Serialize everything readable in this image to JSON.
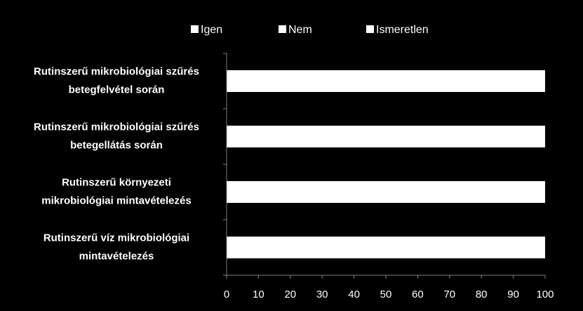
{
  "chart_data": {
    "type": "bar",
    "orientation": "horizontal",
    "stacked": true,
    "categories": [
      [
        "Rutinszerű mikrobiológiai szűrés",
        "betegfelvétel során"
      ],
      [
        "Rutinszerű mikrobiológiai szűrés",
        "betegellátás során"
      ],
      [
        "Rutinszerű környezeti",
        "mikrobiológiai mintavételezés"
      ],
      [
        "Rutinszerű víz mikrobiológiai",
        "mintavételezés"
      ]
    ],
    "series": [
      {
        "name": "Igen",
        "values": [
          100,
          100,
          100,
          100
        ],
        "color": "#ffffff"
      },
      {
        "name": "Nem",
        "values": [
          0,
          0,
          0,
          0
        ],
        "color": "#ffffff"
      },
      {
        "name": "Ismeretlen",
        "values": [
          0,
          0,
          0,
          0
        ],
        "color": "#ffffff"
      }
    ],
    "xlim": [
      0,
      100
    ],
    "xticks": [
      "0",
      "10",
      "20",
      "30",
      "40",
      "50",
      "60",
      "70",
      "80",
      "90",
      "100"
    ],
    "legend_position": "top",
    "grid": false,
    "background": "#000000",
    "axis_color": "#808080"
  }
}
